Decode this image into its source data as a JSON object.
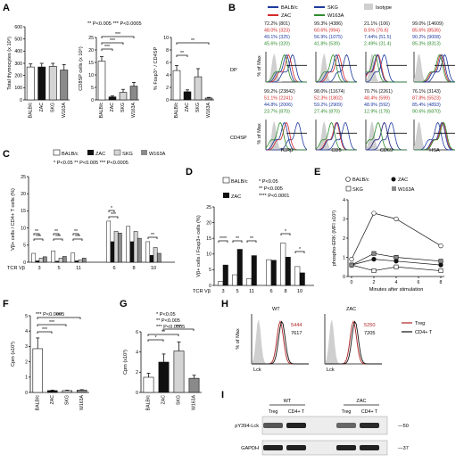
{
  "panels": {
    "A": {
      "letter": "A",
      "sig": "** P<0.005  *** P<0.0005",
      "cats": [
        "BALB/c",
        "ZAC",
        "SKG",
        "W163A"
      ],
      "colors": [
        "#ffffff",
        "#111111",
        "#d4d4d4",
        "#8a8a8a"
      ]
    },
    "B": {
      "letter": "B",
      "legend": [
        "BALB/c",
        "ZAC",
        "SKG",
        "W163A",
        "Isotype"
      ],
      "rows": [
        "DP",
        "CD4SP"
      ],
      "markers": [
        "TCRβ",
        "CD5",
        "CD69",
        "HSA"
      ],
      "ylabel": "% of Max"
    },
    "C": {
      "letter": "C",
      "legend": [
        "BALB/c",
        "ZAC",
        "SKG",
        "W163A"
      ],
      "sig": "* P<0.05  ** P<0.005  *** P<0.0005",
      "ylabel": "Vβ+ cells / CD4+ T cells (%)",
      "xlabel_prefix": "TCR Vβ",
      "vb": [
        "3",
        "5",
        "11",
        "6",
        "8",
        "10"
      ]
    },
    "D": {
      "letter": "D",
      "legend": [
        "BALB/c",
        "ZAC"
      ],
      "sig": [
        "* P<0.05",
        "** P<0.005",
        "**** P<0.0001"
      ],
      "ylabel": "Vβ+ cells / Foxp3+ cells (%)",
      "xlabel_prefix": "TCR Vβ",
      "vb": [
        "3",
        "5",
        "11",
        "6",
        "8",
        "10"
      ]
    },
    "E": {
      "letter": "E",
      "legend": [
        "BALB/c",
        "ZAC",
        "SKG",
        "W163A"
      ],
      "ylabel": "phospho-ERK (MFI x10²)",
      "xlabel": "Minutes after stimulation",
      "xticks": [
        "0",
        "2",
        "4",
        "6",
        "8"
      ]
    },
    "F": {
      "letter": "F",
      "sig": "*** P<0.0005",
      "ylabel": "Cpm (x10³)",
      "cats": [
        "BALB/c",
        "ZAC",
        "SKG",
        "W163A"
      ]
    },
    "G": {
      "letter": "G",
      "sig": [
        "* P<0.05",
        "** P<0.005",
        "*** P<0.0005"
      ],
      "ylabel": "Cpm (x10³)",
      "cats": [
        "BALB/c",
        "ZAC",
        "SKG",
        "W163A"
      ]
    },
    "H": {
      "letter": "H",
      "titles": [
        "WT",
        "ZAC"
      ],
      "ylabel": "% of Max",
      "xlabel": "Lck",
      "mfi_wt": [
        "5444",
        "7617"
      ],
      "mfi_zac": [
        "5250",
        "7205"
      ],
      "legend": [
        "Treg",
        "CD4+ T"
      ]
    },
    "I": {
      "letter": "I",
      "groups": [
        "WT",
        "ZAC"
      ],
      "lanes": [
        "Treg",
        "CD4+ T",
        "Treg",
        "CD4+ T"
      ],
      "rows": [
        "pY394-Lck",
        "GAPDH"
      ],
      "mw": [
        "50",
        "37"
      ]
    }
  },
  "chart_data": [
    {
      "type": "bar",
      "id": "A1",
      "categories": [
        "BALB/c",
        "ZAC",
        "SKG",
        "W163A"
      ],
      "values": [
        270,
        270,
        275,
        245
      ],
      "errors": [
        25,
        30,
        25,
        45
      ],
      "ylabel": "Total thymocytes (x 10⁶)",
      "ylim": [
        0,
        600
      ],
      "yticks": [
        0,
        100,
        200,
        300,
        400,
        500,
        600
      ]
    },
    {
      "type": "bar",
      "id": "A2",
      "categories": [
        "BALB/c",
        "ZAC",
        "SKG",
        "W163A"
      ],
      "values": [
        15.5,
        1.2,
        3,
        5.5
      ],
      "errors": [
        1.8,
        0.4,
        1.2,
        1.5
      ],
      "ylabel": "CD8SP cells (x 10⁶)",
      "ylim": [
        0,
        25
      ],
      "yticks": [
        0,
        5,
        10,
        15,
        20,
        25
      ]
    },
    {
      "type": "bar",
      "id": "A3",
      "categories": [
        "BALB/c",
        "ZAC",
        "SKG",
        "W163A"
      ],
      "values": [
        4.7,
        1.3,
        3.7,
        0.3
      ],
      "errors": [
        0.8,
        0.3,
        1.3,
        0.1
      ],
      "ylabel": "% Foxp3⁺ / CD4SP",
      "ylim": [
        0,
        10
      ],
      "yticks": [
        0,
        2,
        4,
        6,
        8,
        10
      ]
    },
    {
      "type": "histogram-panel",
      "id": "B",
      "rows": [
        {
          "name": "DP",
          "cells": [
            {
              "marker": "TCRβ",
              "values": [
                "72.2% (801)",
                "48.0% (323)",
                "49.1% (325)",
                "45.6% (320)"
              ]
            },
            {
              "marker": "CD5",
              "values": [
                "99.3% (4386)",
                "60.6% (994)",
                "56.9% (1075)",
                "41.8% (539)"
              ]
            },
            {
              "marker": "CD69",
              "values": [
                "21.1% (106)",
                "8.5% (76.6)",
                "7.44% (51.5)",
                "2.49% (31.4)"
              ]
            },
            {
              "marker": "HSA",
              "values": [
                "99.0% (14609)",
                "85.6% (8536)",
                "90.2% (9008)",
                "85.3% (8313)"
              ]
            }
          ]
        },
        {
          "name": "CD4SP",
          "cells": [
            {
              "marker": "TCRβ",
              "values": [
                "99.2% (23842)",
                "51.1% (2241)",
                "44.8% (2006)",
                "23.7% (870)"
              ]
            },
            {
              "marker": "CD5",
              "values": [
                "98.0% (11674)",
                "52.3% (1802)",
                "59.2% (2909)",
                "27.4% (870)"
              ]
            },
            {
              "marker": "CD69",
              "values": [
                "70.7% (2261)",
                "48.4% (599)",
                "48.9% (592)",
                "12.9% (178)"
              ]
            },
            {
              "marker": "HSA",
              "values": [
                "76.1% (3143)",
                "87.8% (5523)",
                "85.4% (4893)",
                "90.6% (6870)"
              ]
            }
          ]
        }
      ]
    },
    {
      "type": "bar",
      "id": "C",
      "categories": [
        "3",
        "5",
        "11",
        "6",
        "8",
        "10"
      ],
      "series": [
        {
          "name": "BALB/c",
          "values": [
            2.6,
            3.3,
            2.7,
            12,
            10.5,
            6
          ]
        },
        {
          "name": "ZAC",
          "values": [
            0.4,
            0.3,
            0.4,
            6,
            6,
            2
          ]
        },
        {
          "name": "SKG",
          "values": [
            1.2,
            1.2,
            0.7,
            9,
            9,
            4.3
          ]
        },
        {
          "name": "W163A",
          "values": [
            1.6,
            1.7,
            1.2,
            8.5,
            7,
            2.6
          ]
        }
      ],
      "ylim": [
        0,
        25
      ],
      "yticks": [
        0,
        5,
        10,
        15,
        20,
        25
      ]
    },
    {
      "type": "bar",
      "id": "D",
      "categories": [
        "3",
        "5",
        "11",
        "6",
        "8",
        "10"
      ],
      "series": [
        {
          "name": "BALB/c",
          "values": [
            1.3,
            3.4,
            2.2,
            8.2,
            13.5,
            6
          ]
        },
        {
          "name": "ZAC",
          "values": [
            6.5,
            11.5,
            9.5,
            8,
            9,
            4
          ]
        }
      ],
      "ylim": [
        0,
        25
      ],
      "yticks": [
        0,
        5,
        10,
        15,
        20,
        25
      ]
    },
    {
      "type": "line",
      "id": "E",
      "x": [
        0,
        2,
        4,
        8
      ],
      "series": [
        {
          "name": "BALB/c",
          "values": [
            0.9,
            3.3,
            3,
            1.6
          ]
        },
        {
          "name": "ZAC",
          "values": [
            0.6,
            0.9,
            0.8,
            0.6
          ]
        },
        {
          "name": "SKG",
          "values": [
            0.6,
            0.3,
            0.5,
            0.3
          ]
        },
        {
          "name": "W163A",
          "values": [
            0.6,
            1.2,
            1.0,
            0.8
          ]
        }
      ],
      "ylim": [
        0,
        4
      ],
      "yticks": [
        0,
        1,
        2,
        3,
        4
      ],
      "xlim": [
        0,
        8
      ]
    },
    {
      "type": "bar",
      "id": "F",
      "categories": [
        "BALB/c",
        "ZAC",
        "SKG",
        "W163A"
      ],
      "values": [
        2.85,
        0.12,
        0.12,
        0.15
      ],
      "errors": [
        0.7,
        0.03,
        0.03,
        0.03
      ],
      "ylim": [
        0,
        5
      ],
      "yticks": [
        0,
        1,
        2,
        3,
        4,
        5
      ]
    },
    {
      "type": "bar",
      "id": "G",
      "categories": [
        "BALB/c",
        "ZAC",
        "SKG",
        "W163A"
      ],
      "values": [
        1.5,
        3.0,
        4.1,
        1.4
      ],
      "errors": [
        0.4,
        0.8,
        0.9,
        0.3
      ],
      "ylim": [
        0,
        6
      ],
      "yticks": [
        0,
        2,
        4,
        6
      ]
    }
  ]
}
